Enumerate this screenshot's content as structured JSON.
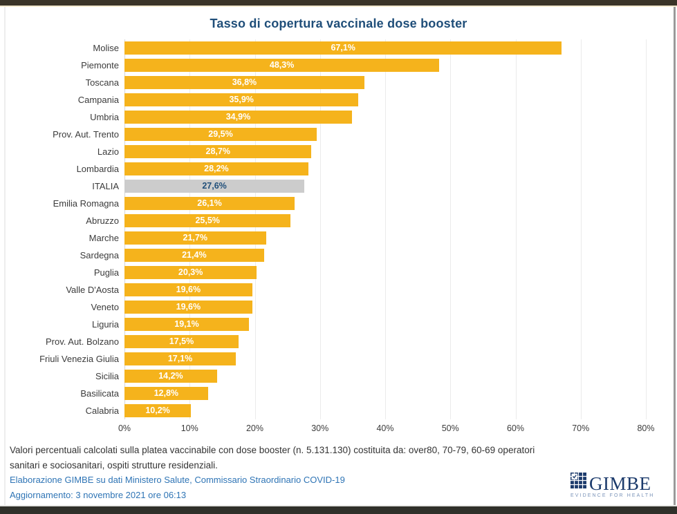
{
  "title": "Tasso di copertura vaccinale dose booster",
  "chart_data": {
    "type": "bar",
    "orientation": "horizontal",
    "title": "Tasso di copertura vaccinale dose booster",
    "categories": [
      "Molise",
      "Piemonte",
      "Toscana",
      "Campania",
      "Umbria",
      "Prov. Aut. Trento",
      "Lazio",
      "Lombardia",
      "ITALIA",
      "Emilia Romagna",
      "Abruzzo",
      "Marche",
      "Sardegna",
      "Puglia",
      "Valle D'Aosta",
      "Veneto",
      "Liguria",
      "Prov. Aut. Bolzano",
      "Friuli Venezia Giulia",
      "Sicilia",
      "Basilicata",
      "Calabria"
    ],
    "values": [
      67.1,
      48.3,
      36.8,
      35.9,
      34.9,
      29.5,
      28.7,
      28.2,
      27.6,
      26.1,
      25.5,
      21.7,
      21.4,
      20.3,
      19.6,
      19.6,
      19.1,
      17.5,
      17.1,
      14.2,
      12.8,
      10.2
    ],
    "value_labels": [
      "67,1%",
      "48,3%",
      "36,8%",
      "35,9%",
      "34,9%",
      "29,5%",
      "28,7%",
      "28,2%",
      "27,6%",
      "26,1%",
      "25,5%",
      "21,7%",
      "21,4%",
      "20,3%",
      "19,6%",
      "19,6%",
      "19,1%",
      "17,5%",
      "17,1%",
      "14,2%",
      "12,8%",
      "10,2%"
    ],
    "highlight_index": 8,
    "highlight_category": "ITALIA",
    "xlim": [
      0,
      80
    ],
    "x_ticks": [
      "0%",
      "10%",
      "20%",
      "30%",
      "40%",
      "50%",
      "60%",
      "70%",
      "80%"
    ],
    "grid": true,
    "legend": false,
    "bar_color": "#f5b31c",
    "highlight_bar_color": "#cccccc",
    "value_label_color": "#ffffff",
    "highlight_value_label_color": "#1f4e79",
    "title_color": "#1f4e79"
  },
  "footnote": "Valori percentuali calcolati sulla platea vaccinabile con dose booster (n. 5.131.130) costituita da: over80, 70-79, 60-69 operatori\nsanitari e sociosanitari, ospiti strutture residenziali.",
  "source": {
    "line1": "Elaborazione GIMBE su dati Ministero Salute, Commissario Straordinario COVID-19",
    "line2": "Aggiornamento: 3 novembre 2021 ore 06:13"
  },
  "logo": {
    "word": "GIMBE",
    "tagline": "EVIDENCE FOR HEALTH"
  }
}
